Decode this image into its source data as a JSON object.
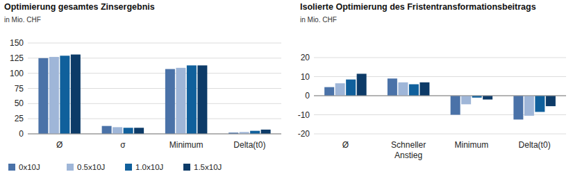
{
  "chart_data": [
    {
      "type": "bar",
      "title": "Optimierung gesamtes Zinsergebnis",
      "subtitle": "in Mio. CHF",
      "categories": [
        "Ø",
        "σ",
        "Minimum",
        "Delta(t0)"
      ],
      "series": [
        {
          "name": "0x10J",
          "color": "#4a72a8",
          "values": [
            125,
            13,
            107,
            2
          ]
        },
        {
          "name": "0.5x10J",
          "color": "#9fb6d8",
          "values": [
            127,
            11,
            109,
            3
          ]
        },
        {
          "name": "1.0x10J",
          "color": "#10609c",
          "values": [
            129,
            10,
            113,
            5
          ]
        },
        {
          "name": "1.5x10J",
          "color": "#0d3b68",
          "values": [
            131,
            10,
            113,
            7
          ]
        }
      ],
      "ylim": [
        0,
        150
      ],
      "yticks": [
        0,
        25,
        50,
        75,
        100,
        125,
        150
      ],
      "grid": true,
      "legend": "bottom"
    },
    {
      "type": "bar",
      "title": "Isolierte Optimierung des Fristentransformationsbeitrags",
      "subtitle": "in Mio. CHF",
      "categories": [
        "Ø",
        "Schneller Anstieg",
        "Minimum",
        "Delta(t0)"
      ],
      "series": [
        {
          "color": "#4a72a8",
          "values": [
            4.5,
            9,
            -10,
            -12.5
          ]
        },
        {
          "color": "#9fb6d8",
          "values": [
            6.5,
            7,
            -4.5,
            -10.5
          ]
        },
        {
          "color": "#10609c",
          "values": [
            8.5,
            6,
            -1,
            -8.5
          ]
        },
        {
          "color": "#0d3b68",
          "values": [
            11.5,
            7,
            -2,
            -5.5
          ]
        }
      ],
      "ylim": [
        -20,
        20
      ],
      "yticks": [
        -20,
        -10,
        0,
        10,
        20
      ],
      "grid": true
    }
  ]
}
